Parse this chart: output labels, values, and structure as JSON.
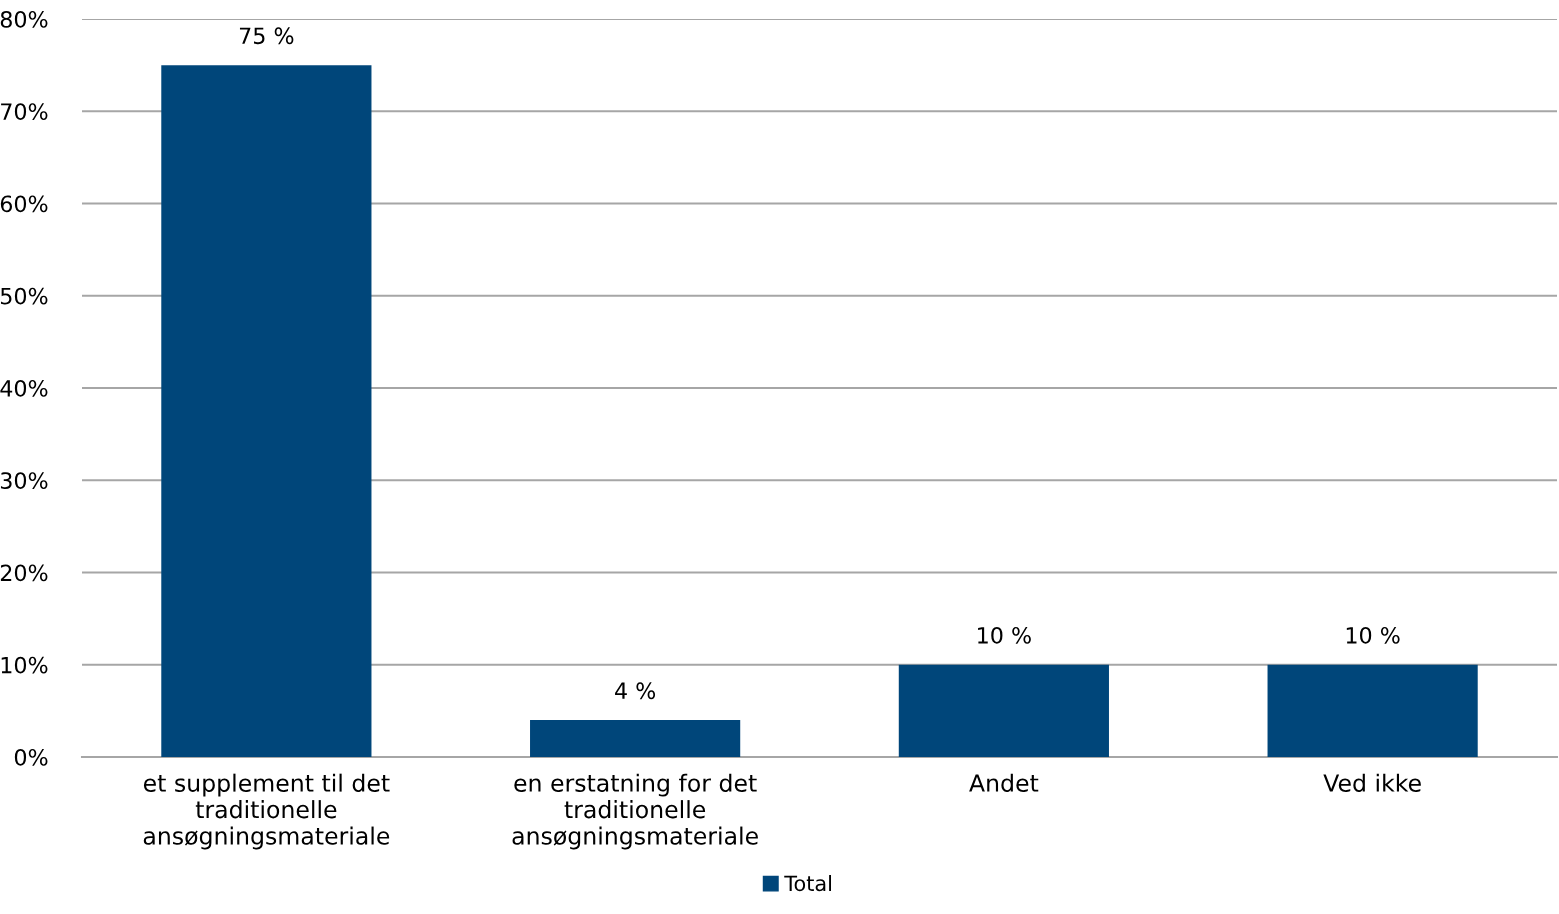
{
  "chart_data": {
    "type": "bar",
    "categories": [
      "et supplement til det\ntraditionelle\nansøgningsmateriale",
      "en erstatning for det\ntraditionelle\nansøgningsmateriale",
      "Andet",
      "Ved ikke"
    ],
    "series": [
      {
        "name": "Total",
        "color": "#00467a",
        "values": [
          75,
          4,
          10,
          10
        ],
        "value_labels": [
          "75 %",
          "4 %",
          "10 %",
          "10 %"
        ]
      }
    ],
    "ylim": [
      0,
      80
    ],
    "yticks": [
      {
        "value": 0,
        "label": "0%"
      },
      {
        "value": 10,
        "label": "10%"
      },
      {
        "value": 20,
        "label": "20%"
      },
      {
        "value": 30,
        "label": "30%"
      },
      {
        "value": 40,
        "label": "40%"
      },
      {
        "value": 50,
        "label": "50%"
      },
      {
        "value": 60,
        "label": "60%"
      },
      {
        "value": 70,
        "label": "70%"
      },
      {
        "value": 80,
        "label": "80%"
      }
    ],
    "grid": "y",
    "legend": "bottom"
  }
}
